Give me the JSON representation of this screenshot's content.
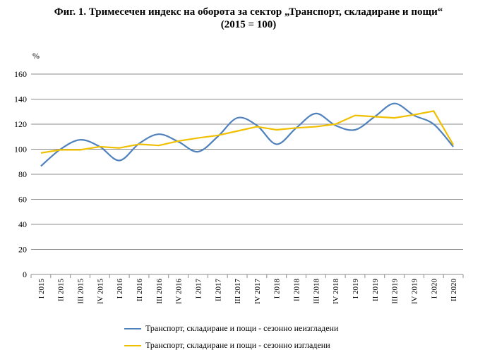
{
  "title_line1": "Фиг. 1. Тримесечен индекс на оборота за сектор „Транспорт, складиране и пощи“",
  "title_line2": "(2015 = 100)",
  "chart_data": {
    "type": "line",
    "ylabel": "%",
    "ylim": [
      0,
      160
    ],
    "yticks": [
      0,
      20,
      40,
      60,
      80,
      100,
      120,
      140,
      160
    ],
    "grid": true,
    "legend_position": "bottom",
    "categories": [
      "I 2015",
      "II 2015",
      "III 2015",
      "IV 2015",
      "I 2016",
      "II 2016",
      "III 2016",
      "IV 2016",
      "I 2017",
      "II 2017",
      "III 2017",
      "IV 2017",
      "I 2018",
      "II 2018",
      "III 2018",
      "IV 2018",
      "I 2019",
      "II 2019",
      "III 2019",
      "IV 2019",
      "I 2020",
      "II 2020"
    ],
    "series": [
      {
        "name": "Транспорт, складиране и пощи - сезонно неизгладени",
        "color": "#4f81bd",
        "values": [
          86.5,
          100,
          107.5,
          102,
          91,
          104.5,
          112,
          106,
          98,
          110,
          125,
          119,
          104,
          117,
          128.5,
          119,
          115.5,
          126,
          136.5,
          127,
          120,
          102
        ]
      },
      {
        "name": "Транспорт, складиране и пощи - сезонно изгладени",
        "color": "#f0c000",
        "values": [
          97,
          99.5,
          99.5,
          102,
          101,
          104,
          103,
          106.5,
          109,
          111,
          114.5,
          118,
          115.5,
          117,
          118,
          120,
          127,
          126,
          125,
          127.5,
          130.5,
          103.5
        ]
      }
    ]
  }
}
